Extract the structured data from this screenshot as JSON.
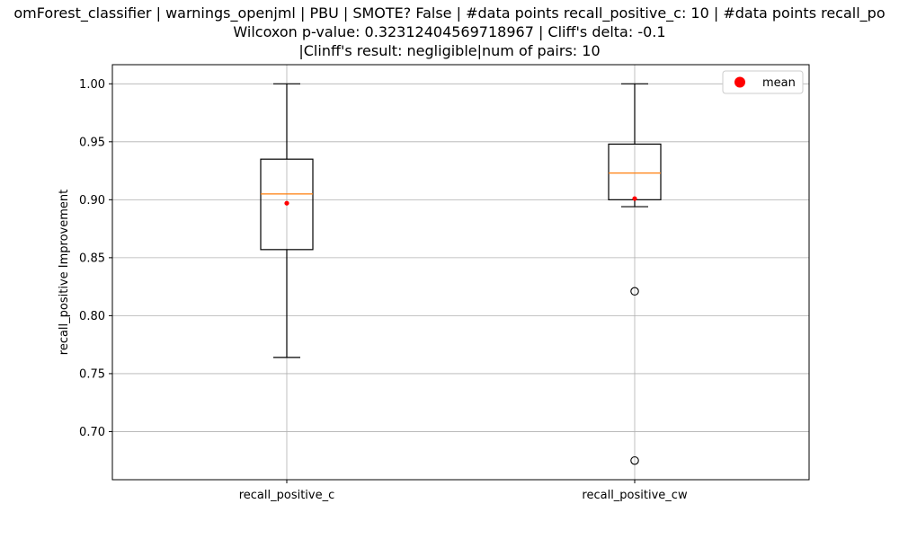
{
  "chart_data": {
    "type": "box",
    "title": {
      "line1": "omForest_classifier | warnings_openjml | PBU | SMOTE? False | #data points recall_positive_c: 10 | #data points recall_po",
      "line2": "Wilcoxon p-value: 0.32312404569718967 | Cliff's delta: -0.1",
      "line3": "|Clinff's result: negligible|num of pairs: 10"
    },
    "ylabel": "recall_positive Improvement",
    "xlabel": "",
    "ylim": [
      0.6585,
      1.0165
    ],
    "yticks": [
      0.7,
      0.75,
      0.8,
      0.85,
      0.9,
      0.95,
      1.0
    ],
    "ytick_labels": [
      "0.70",
      "0.75",
      "0.80",
      "0.85",
      "0.90",
      "0.95",
      "1.00"
    ],
    "grid": true,
    "legend": {
      "position": "top-right",
      "entries": [
        {
          "label": "mean",
          "color": "#ff0000"
        }
      ]
    },
    "categories": [
      "recall_positive_c",
      "recall_positive_cw"
    ],
    "boxes": [
      {
        "name": "recall_positive_c",
        "whisker_low": 0.764,
        "q1": 0.857,
        "median": 0.905,
        "q3": 0.935,
        "whisker_high": 1.0,
        "mean": 0.897,
        "outliers": []
      },
      {
        "name": "recall_positive_cw",
        "whisker_low": 0.894,
        "q1": 0.9,
        "median": 0.923,
        "q3": 0.948,
        "whisker_high": 1.0,
        "mean": 0.901,
        "outliers": [
          0.821,
          0.675
        ]
      }
    ],
    "colors": {
      "box": "#000000",
      "median": "#ff7f0e",
      "mean": "#ff0000",
      "grid": "#b0b0b0"
    }
  }
}
